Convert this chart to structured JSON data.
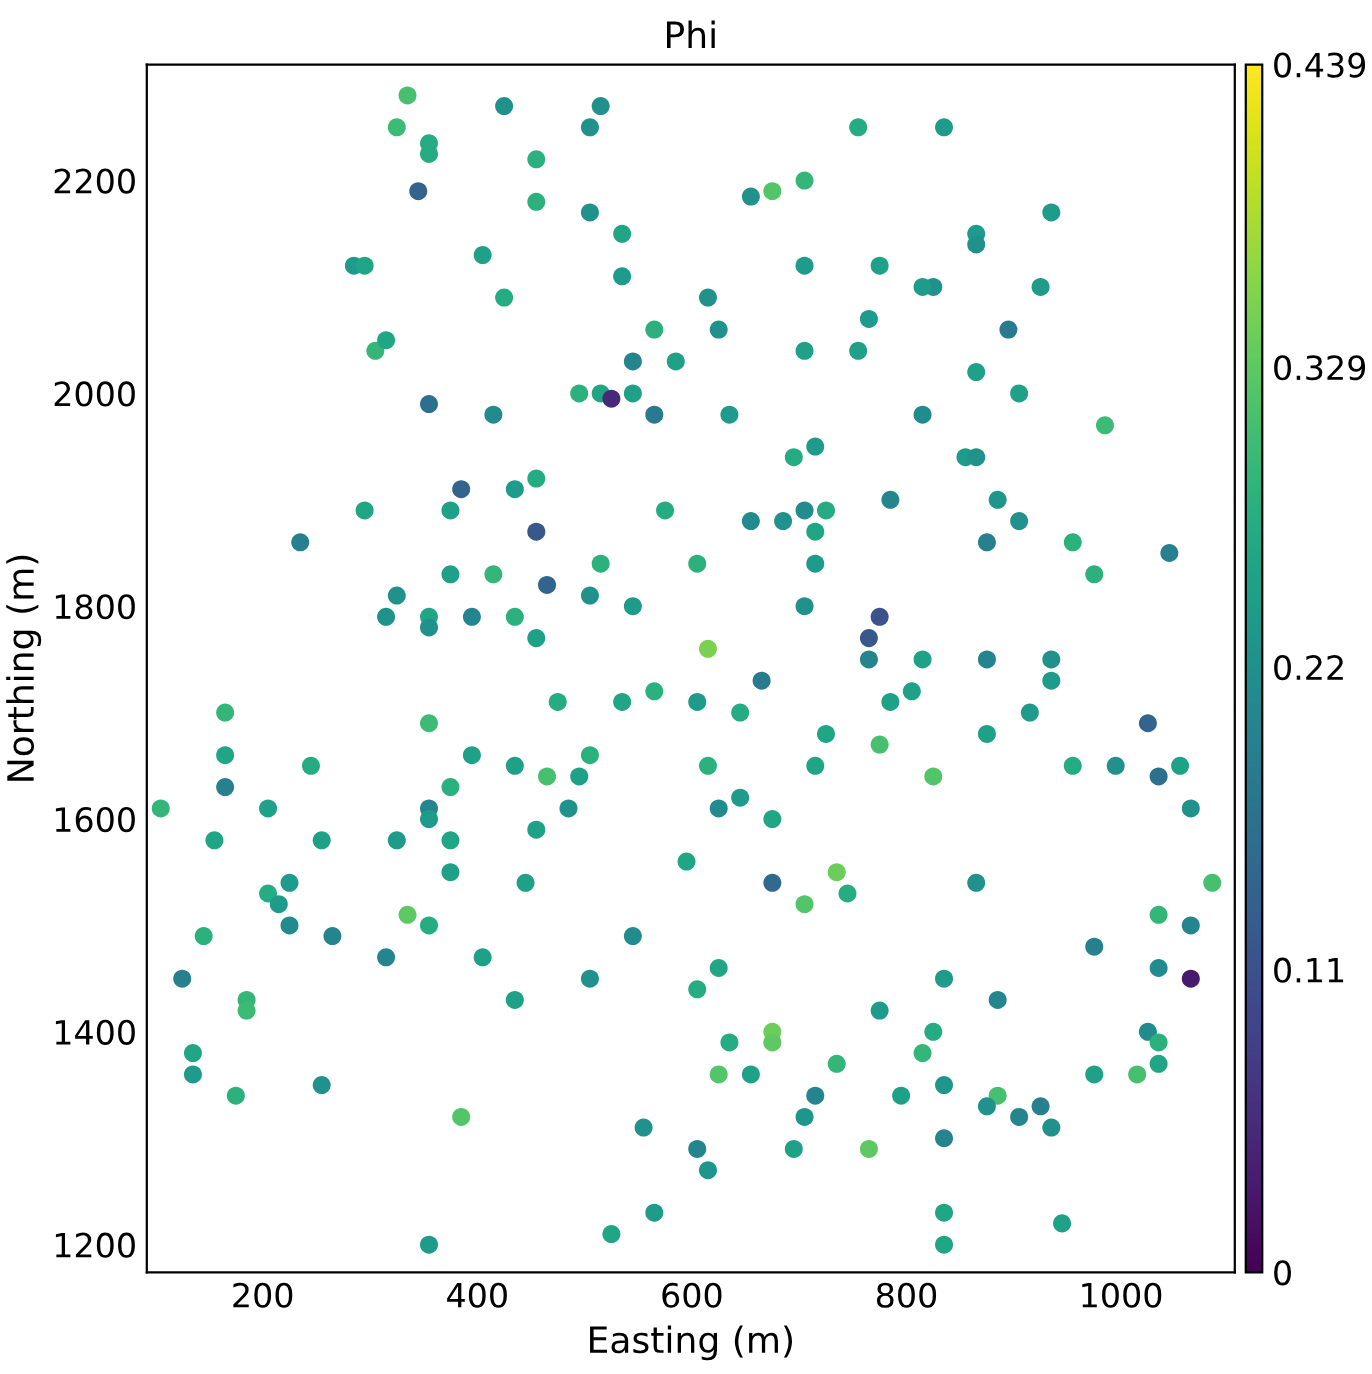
{
  "chart_data": {
    "type": "scatter",
    "title": "Phi",
    "xlabel": "Easting (m)",
    "ylabel": "Northing (m)",
    "xlim": [
      92,
      1106
    ],
    "ylim": [
      1174,
      2309
    ],
    "xticks": [
      200,
      400,
      600,
      800,
      1000
    ],
    "yticks": [
      1200,
      1400,
      1600,
      1800,
      2000,
      2200
    ],
    "clim": [
      0,
      0.439
    ],
    "cticks": [
      0,
      0.11,
      0.22,
      0.329,
      0.439
    ],
    "grid": false,
    "marker": "circle",
    "x": [
      335,
      425,
      515,
      325,
      505,
      755,
      835,
      355,
      355,
      455,
      345,
      675,
      655,
      455,
      705,
      505,
      935,
      865,
      865,
      535,
      775,
      285,
      295,
      705,
      535,
      405,
      825,
      815,
      925,
      615,
      425,
      625,
      565,
      895,
      305,
      315,
      765,
      585,
      545,
      865,
      495,
      515,
      545,
      525,
      355,
      415,
      565,
      755,
      705,
      815,
      905,
      985,
      635,
      715,
      695,
      855,
      865,
      455,
      435,
      385,
      785,
      885,
      725,
      375,
      575,
      905,
      655,
      685,
      705,
      455,
      715,
      235,
      295,
      515,
      605,
      955,
      875,
      715,
      975,
      1045,
      415,
      375,
      465,
      325,
      505,
      545,
      355,
      355,
      315,
      395,
      435,
      705,
      775,
      765,
      455,
      615,
      765,
      815,
      875,
      935,
      935,
      665,
      565,
      535,
      605,
      785,
      725,
      805,
      915,
      645,
      475,
      165,
      355,
      1025,
      875,
      775,
      165,
      395,
      505,
      245,
      435,
      615,
      715,
      955,
      995,
      1055,
      465,
      495,
      825,
      1035,
      165,
      375,
      645,
      485,
      625,
      205,
      105,
      355,
      355,
      455,
      1065,
      675,
      155,
      255,
      325,
      375,
      595,
      375,
      735,
      225,
      445,
      675,
      865,
      745,
      205,
      1085,
      215,
      705,
      335,
      355,
      225,
      1065,
      1035,
      145,
      265,
      545,
      975,
      315,
      405,
      625,
      1035,
      125,
      835,
      885,
      1065,
      505,
      185,
      185,
      435,
      775,
      605,
      675,
      675,
      635,
      825,
      815,
      1025,
      1035,
      735,
      135,
      1035,
      1015,
      715,
      135,
      625,
      655,
      835,
      975,
      175,
      255,
      795,
      885,
      875,
      905,
      925,
      385,
      705,
      935,
      555,
      835,
      695,
      765,
      605,
      615,
      565,
      835,
      945,
      525,
      355,
      835
    ],
    "values": [
      2280,
      2270,
      2270,
      2250,
      2250,
      2250,
      2250,
      2235,
      2225,
      2220,
      2190,
      2190,
      2185,
      2180,
      2200,
      2170,
      2170,
      2150,
      2140,
      2150,
      2120,
      2120,
      2120,
      2120,
      2110,
      2130,
      2100,
      2100,
      2100,
      2090,
      2090,
      2060,
      2060,
      2060,
      2040,
      2050,
      2070,
      2030,
      2030,
      2020,
      2000,
      2000,
      2000,
      1995,
      1990,
      1980,
      1980,
      2040,
      2040,
      1980,
      2000,
      1970,
      1980,
      1950,
      1940,
      1940,
      1940,
      1920,
      1910,
      1910,
      1900,
      1900,
      1890,
      1890,
      1890,
      1880,
      1880,
      1880,
      1890,
      1870,
      1870,
      1860,
      1890,
      1840,
      1840,
      1860,
      1860,
      1840,
      1830,
      1850,
      1830,
      1830,
      1820,
      1810,
      1810,
      1800,
      1790,
      1780,
      1790,
      1790,
      1790,
      1800,
      1790,
      1770,
      1770,
      1760,
      1750,
      1750,
      1750,
      1730,
      1750,
      1730,
      1720,
      1710,
      1710,
      1710,
      1680,
      1720,
      1700,
      1700,
      1710,
      1700,
      1690,
      1690,
      1680,
      1670,
      1660,
      1660,
      1660,
      1650,
      1650,
      1650,
      1650,
      1650,
      1650,
      1650,
      1640,
      1640,
      1640,
      1640,
      1630,
      1630,
      1620,
      1610,
      1610,
      1610,
      1610,
      1610,
      1600,
      1590,
      1610,
      1600,
      1580,
      1580,
      1580,
      1580,
      1560,
      1550,
      1550,
      1540,
      1540,
      1540,
      1540,
      1530,
      1530,
      1540,
      1520,
      1520,
      1510,
      1500,
      1500,
      1500,
      1510,
      1490,
      1490,
      1490,
      1480,
      1470,
      1470,
      1460,
      1460,
      1450,
      1450,
      1430,
      1450,
      1450,
      1430,
      1420,
      1430,
      1420,
      1440,
      1400,
      1390,
      1390,
      1400,
      1380,
      1400,
      1390,
      1370,
      1380,
      1370,
      1360,
      1340,
      1360,
      1360,
      1360,
      1350,
      1360,
      1340,
      1350,
      1340,
      1340,
      1330,
      1320,
      1330,
      1320,
      1320,
      1310,
      1310,
      1300,
      1290,
      1290,
      1290,
      1270,
      1230,
      1230,
      1220,
      1210,
      1200,
      1200
    ],
    "cvalues": [
      0.31,
      0.22,
      0.22,
      0.3,
      0.22,
      0.27,
      0.24,
      0.27,
      0.27,
      0.28,
      0.14,
      0.32,
      0.22,
      0.28,
      0.29,
      0.22,
      0.24,
      0.24,
      0.22,
      0.26,
      0.25,
      0.24,
      0.26,
      0.24,
      0.24,
      0.25,
      0.22,
      0.24,
      0.24,
      0.22,
      0.27,
      0.22,
      0.28,
      0.18,
      0.29,
      0.26,
      0.24,
      0.25,
      0.2,
      0.25,
      0.28,
      0.26,
      0.25,
      0.05,
      0.16,
      0.21,
      0.18,
      0.25,
      0.25,
      0.21,
      0.25,
      0.3,
      0.24,
      0.24,
      0.27,
      0.24,
      0.22,
      0.27,
      0.24,
      0.14,
      0.2,
      0.23,
      0.27,
      0.25,
      0.27,
      0.22,
      0.21,
      0.22,
      0.21,
      0.12,
      0.26,
      0.19,
      0.26,
      0.28,
      0.28,
      0.28,
      0.19,
      0.24,
      0.28,
      0.19,
      0.29,
      0.25,
      0.14,
      0.22,
      0.22,
      0.24,
      0.26,
      0.22,
      0.22,
      0.2,
      0.28,
      0.22,
      0.11,
      0.12,
      0.25,
      0.35,
      0.2,
      0.25,
      0.2,
      0.24,
      0.22,
      0.18,
      0.28,
      0.26,
      0.24,
      0.25,
      0.26,
      0.25,
      0.24,
      0.27,
      0.27,
      0.29,
      0.3,
      0.14,
      0.25,
      0.31,
      0.26,
      0.25,
      0.28,
      0.27,
      0.25,
      0.28,
      0.26,
      0.27,
      0.22,
      0.25,
      0.31,
      0.25,
      0.32,
      0.16,
      0.19,
      0.28,
      0.24,
      0.22,
      0.21,
      0.25,
      0.29,
      0.2,
      0.24,
      0.25,
      0.22,
      0.26,
      0.26,
      0.25,
      0.24,
      0.26,
      0.26,
      0.25,
      0.34,
      0.24,
      0.25,
      0.15,
      0.22,
      0.27,
      0.27,
      0.31,
      0.24,
      0.32,
      0.33,
      0.27,
      0.21,
      0.2,
      0.29,
      0.28,
      0.2,
      0.21,
      0.19,
      0.2,
      0.25,
      0.26,
      0.21,
      0.19,
      0.24,
      0.2,
      0.03,
      0.22,
      0.29,
      0.3,
      0.25,
      0.24,
      0.27,
      0.34,
      0.33,
      0.27,
      0.27,
      0.29,
      0.21,
      0.28,
      0.29,
      0.26,
      0.26,
      0.31,
      0.2,
      0.24,
      0.32,
      0.25,
      0.23,
      0.25,
      0.28,
      0.22,
      0.25,
      0.31,
      0.22,
      0.2,
      0.19,
      0.32,
      0.23,
      0.22,
      0.22,
      0.2,
      0.25,
      0.33,
      0.2,
      0.23,
      0.24,
      0.26,
      0.25,
      0.26,
      0.24,
      0.26
    ]
  }
}
